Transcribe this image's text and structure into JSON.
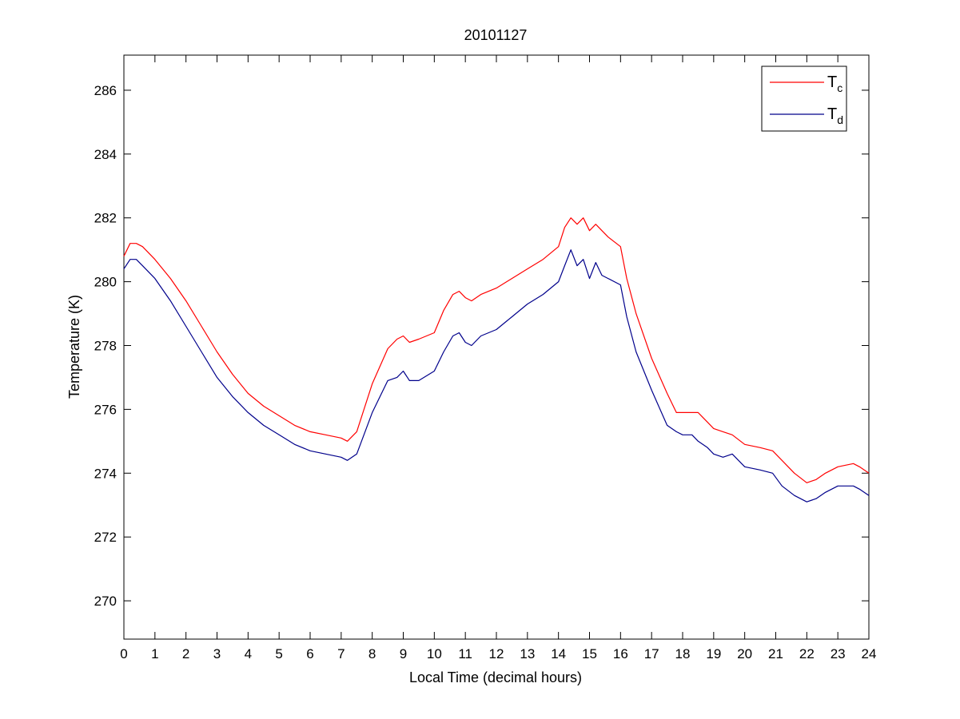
{
  "chart_data": {
    "type": "line",
    "title": "20101127",
    "xlabel": "Local Time (decimal hours)",
    "ylabel": "Temperature (K)",
    "xlim": [
      0,
      24
    ],
    "ylim": [
      268.8,
      287.1
    ],
    "xticks": [
      0,
      1,
      2,
      3,
      4,
      5,
      6,
      7,
      8,
      9,
      10,
      11,
      12,
      13,
      14,
      15,
      16,
      17,
      18,
      19,
      20,
      21,
      22,
      23,
      24
    ],
    "yticks": [
      270,
      272,
      274,
      276,
      278,
      280,
      282,
      284,
      286
    ],
    "grid": false,
    "legend_position": "top-right",
    "series": [
      {
        "name": "T",
        "name_sub": "c",
        "color": "#ff0000",
        "x": [
          0,
          0.2,
          0.4,
          0.6,
          1,
          1.5,
          2,
          2.5,
          3,
          3.5,
          4,
          4.5,
          5,
          5.5,
          6,
          6.5,
          7,
          7.2,
          7.5,
          8,
          8.5,
          8.8,
          9,
          9.2,
          9.5,
          10,
          10.3,
          10.6,
          10.8,
          11,
          11.2,
          11.5,
          12,
          12.5,
          13,
          13.5,
          14,
          14.2,
          14.4,
          14.6,
          14.8,
          15,
          15.2,
          15.4,
          15.6,
          16,
          16.2,
          16.5,
          17,
          17.5,
          17.8,
          18,
          18.3,
          18.5,
          18.8,
          19,
          19.3,
          19.6,
          20,
          20.5,
          20.9,
          21.2,
          21.6,
          22,
          22.3,
          22.6,
          23,
          23.5,
          23.7,
          24
        ],
        "y": [
          280.8,
          281.2,
          281.2,
          281.1,
          280.7,
          280.1,
          279.4,
          278.6,
          277.8,
          277.1,
          276.5,
          276.1,
          275.8,
          275.5,
          275.3,
          275.2,
          275.1,
          275.0,
          275.3,
          276.8,
          277.9,
          278.2,
          278.3,
          278.1,
          278.2,
          278.4,
          279.1,
          279.6,
          279.7,
          279.5,
          279.4,
          279.6,
          279.8,
          280.1,
          280.4,
          280.7,
          281.1,
          281.7,
          282.0,
          281.8,
          282.0,
          281.6,
          281.8,
          281.6,
          281.4,
          281.1,
          280.1,
          279.0,
          277.6,
          276.5,
          275.9,
          275.9,
          275.9,
          275.9,
          275.6,
          275.4,
          275.3,
          275.2,
          274.9,
          274.8,
          274.7,
          274.4,
          274.0,
          273.7,
          273.8,
          274.0,
          274.2,
          274.3,
          274.2,
          274.0
        ]
      },
      {
        "name": "T",
        "name_sub": "d",
        "color": "#00008b",
        "x": [
          0,
          0.2,
          0.4,
          0.6,
          1,
          1.5,
          2,
          2.5,
          3,
          3.5,
          4,
          4.5,
          5,
          5.5,
          6,
          6.5,
          7,
          7.2,
          7.5,
          8,
          8.5,
          8.8,
          9,
          9.2,
          9.5,
          10,
          10.3,
          10.6,
          10.8,
          11,
          11.2,
          11.5,
          12,
          12.5,
          13,
          13.5,
          14,
          14.2,
          14.4,
          14.6,
          14.8,
          15,
          15.2,
          15.4,
          15.6,
          16,
          16.2,
          16.5,
          17,
          17.5,
          17.8,
          18,
          18.3,
          18.5,
          18.8,
          19,
          19.3,
          19.6,
          20,
          20.5,
          20.9,
          21.2,
          21.6,
          22,
          22.3,
          22.6,
          23,
          23.5,
          23.7,
          24
        ],
        "y": [
          280.4,
          280.7,
          280.7,
          280.5,
          280.1,
          279.4,
          278.6,
          277.8,
          277.0,
          276.4,
          275.9,
          275.5,
          275.2,
          274.9,
          274.7,
          274.6,
          274.5,
          274.4,
          274.6,
          275.9,
          276.9,
          277.0,
          277.2,
          276.9,
          276.9,
          277.2,
          277.8,
          278.3,
          278.4,
          278.1,
          278.0,
          278.3,
          278.5,
          278.9,
          279.3,
          279.6,
          280.0,
          280.5,
          281.0,
          280.5,
          280.7,
          280.1,
          280.6,
          280.2,
          280.1,
          279.9,
          278.9,
          277.8,
          276.6,
          275.5,
          275.3,
          275.2,
          275.2,
          275.0,
          274.8,
          274.6,
          274.5,
          274.6,
          274.2,
          274.1,
          274.0,
          273.6,
          273.3,
          273.1,
          273.2,
          273.4,
          273.6,
          273.6,
          273.5,
          273.3
        ]
      }
    ]
  }
}
